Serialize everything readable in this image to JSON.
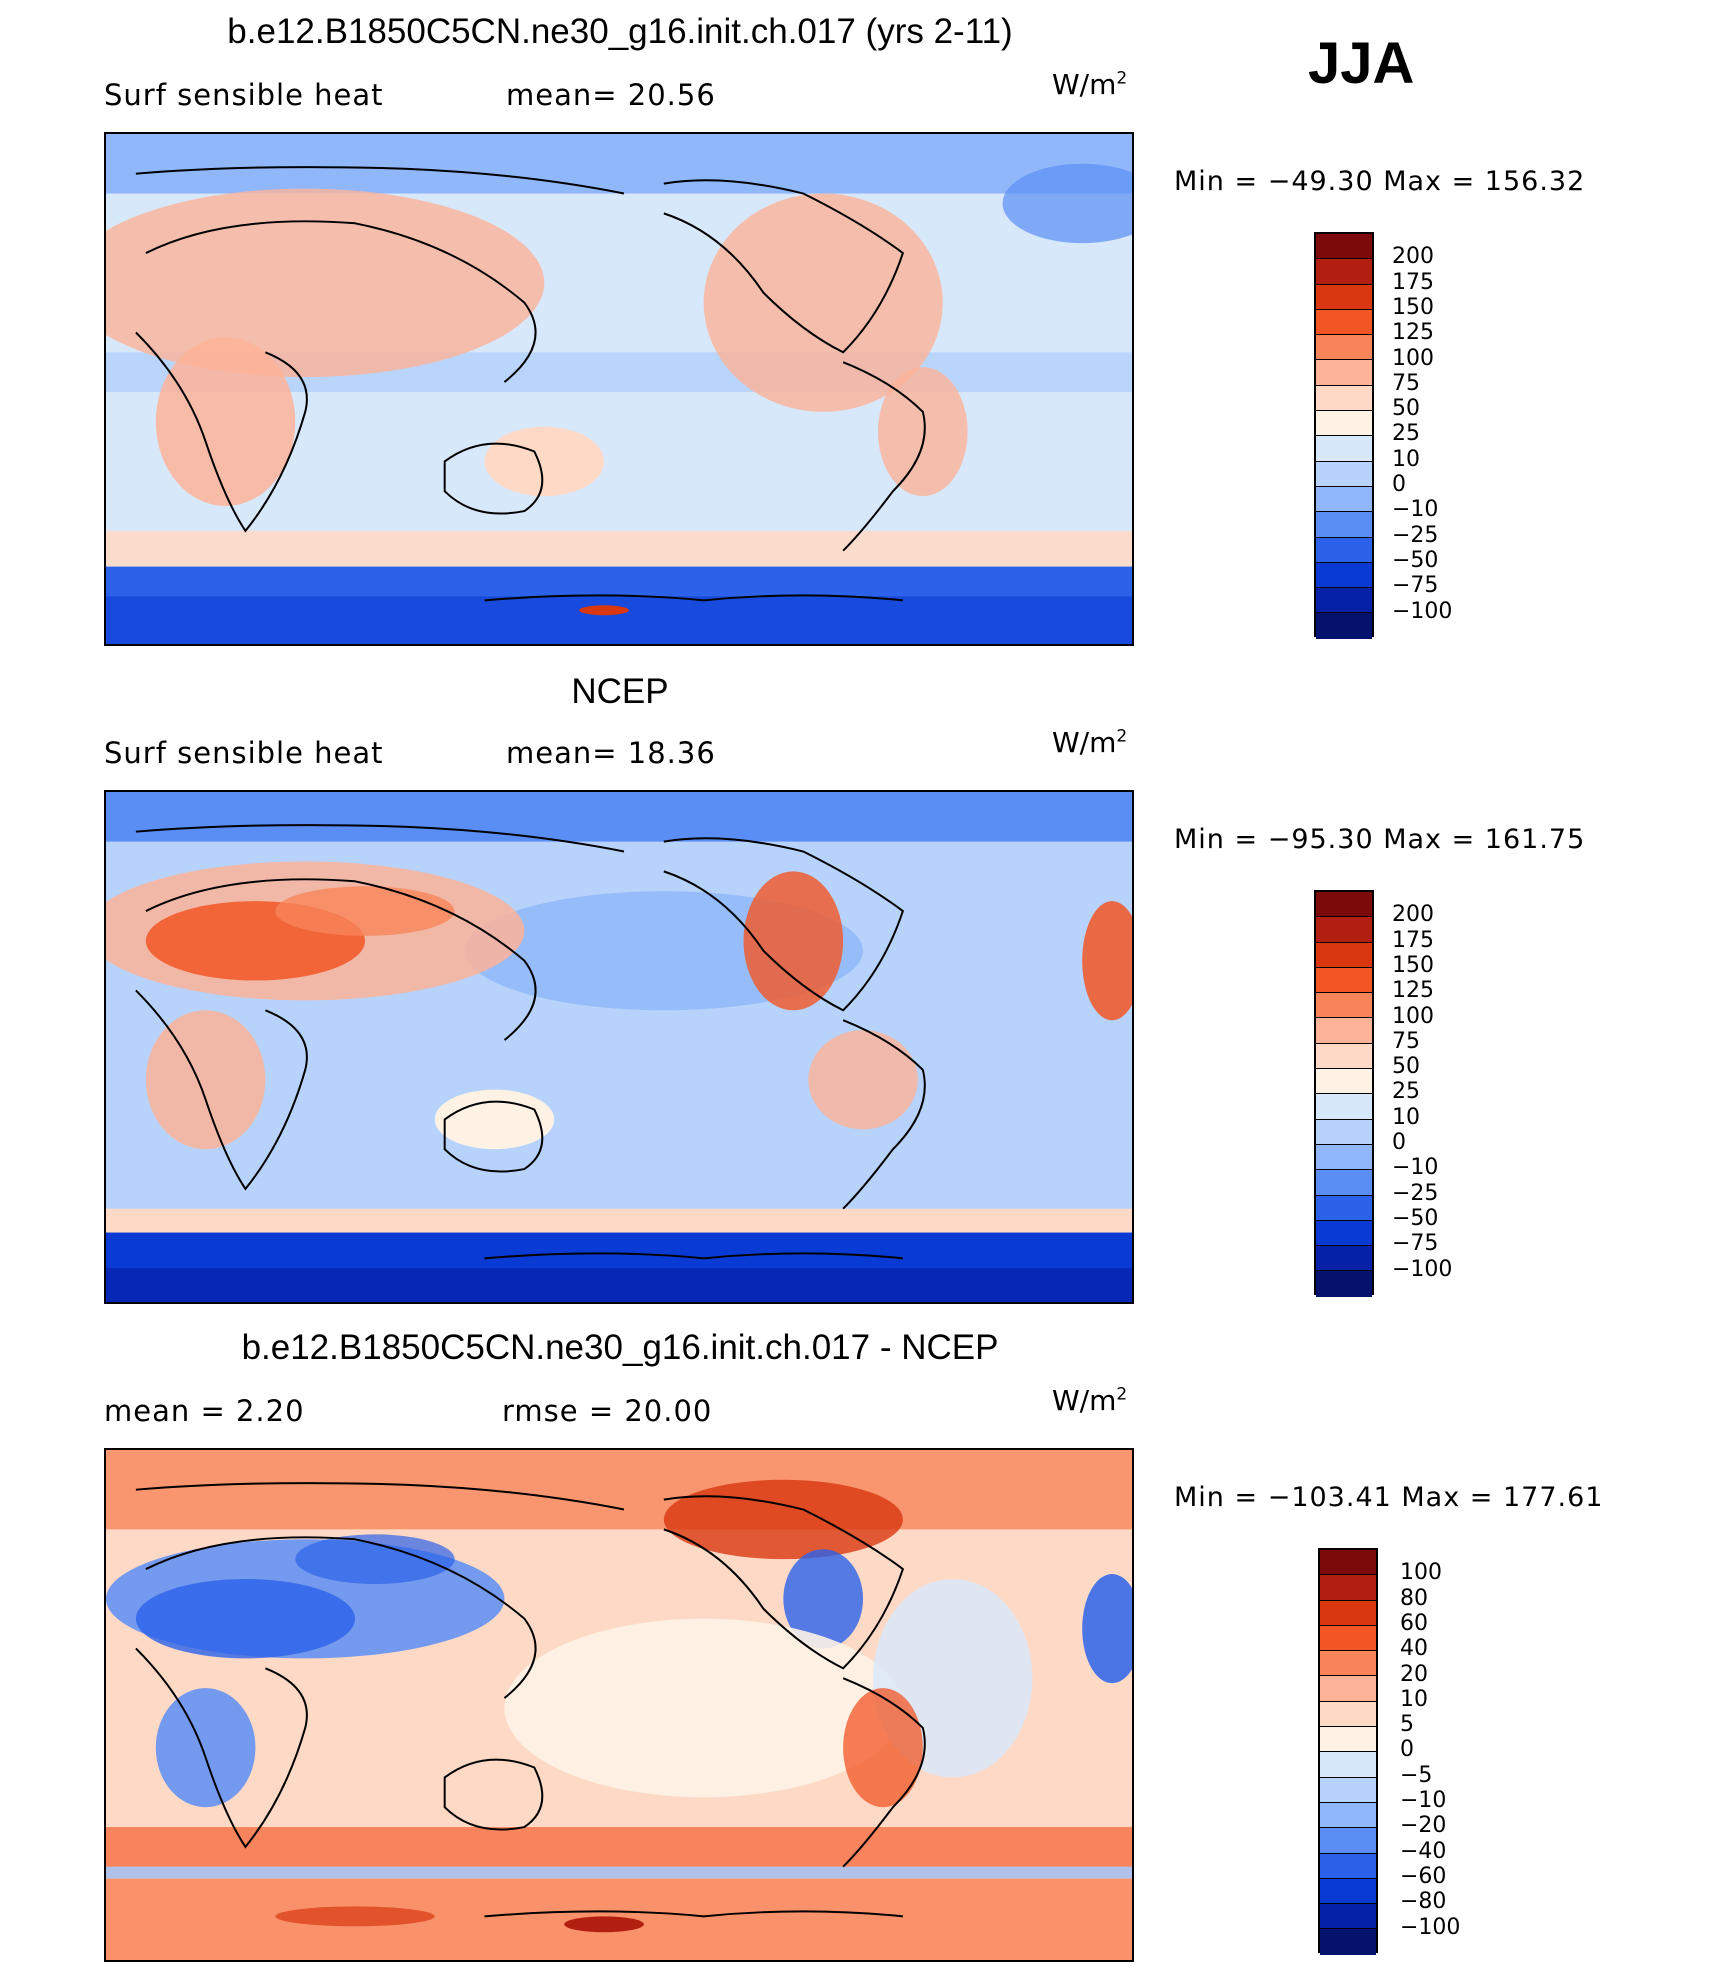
{
  "season": "JJA",
  "colors": {
    "ocean_blue": "#a5c8fb",
    "land_warm": "#f3a98a",
    "antarctic": "#1f4fd6",
    "coast": "#000000"
  },
  "panels": [
    {
      "title": "b.e12.B1850C5CN.ne30_g16.init.ch.017 (yrs 2-11)",
      "left_text": "Surf  sensible  heat",
      "right_text": "mean=   20.56",
      "units": "W/m",
      "units_sup": "2",
      "minmax": "Min  =  −49.30  Max  =  156.32",
      "colorbar": {
        "labels": [
          "200",
          "175",
          "150",
          "125",
          "100",
          "75",
          "50",
          "25",
          "10",
          "0",
          "−10",
          "−25",
          "−50",
          "−75",
          "−100"
        ],
        "colors": [
          "#7d0a0a",
          "#b21f10",
          "#d8370f",
          "#f25624",
          "#f8845a",
          "#fdb398",
          "#fed9c6",
          "#fef2e5",
          "#d8e8fb",
          "#b7d3fb",
          "#8fb7fa",
          "#5a8ef5",
          "#2c62ea",
          "#0a3ad4",
          "#0521a8",
          "#04126e"
        ]
      }
    },
    {
      "title": "NCEP",
      "left_text": "Surf  sensible  heat",
      "right_text": "mean=   18.36",
      "units": "W/m",
      "units_sup": "2",
      "minmax": "Min  =  −95.30  Max  =  161.75",
      "colorbar": {
        "labels": [
          "200",
          "175",
          "150",
          "125",
          "100",
          "75",
          "50",
          "25",
          "10",
          "0",
          "−10",
          "−25",
          "−50",
          "−75",
          "−100"
        ],
        "colors": [
          "#7d0a0a",
          "#b21f10",
          "#d8370f",
          "#f25624",
          "#f8845a",
          "#fdb398",
          "#fed9c6",
          "#fef2e5",
          "#d8e8fb",
          "#b7d3fb",
          "#8fb7fa",
          "#5a8ef5",
          "#2c62ea",
          "#0a3ad4",
          "#0521a8",
          "#04126e"
        ]
      }
    },
    {
      "title": "b.e12.B1850C5CN.ne30_g16.init.ch.017 - NCEP",
      "left_text": "mean =      2.20",
      "right_text": "rmse  =    20.00",
      "units": "W/m",
      "units_sup": "2",
      "minmax": "Min  =  −103.41  Max  =  177.61",
      "colorbar": {
        "labels": [
          "100",
          "80",
          "60",
          "40",
          "20",
          "10",
          "5",
          "0",
          "−5",
          "−10",
          "−20",
          "−40",
          "−60",
          "−80",
          "−100"
        ],
        "colors": [
          "#7d0a0a",
          "#b21f10",
          "#d8370f",
          "#f25624",
          "#f8845a",
          "#fdb398",
          "#fed9c6",
          "#fef2e5",
          "#d8e8fb",
          "#b7d3fb",
          "#8fb7fa",
          "#5a8ef5",
          "#2c62ea",
          "#0a3ad4",
          "#0521a8",
          "#04126e"
        ]
      }
    }
  ],
  "chart_data": [
    {
      "type": "heatmap",
      "title": "b.e12.B1850C5CN.ne30_g16.init.ch.017 (yrs 2-11)",
      "variable": "Surf sensible heat",
      "units": "W/m2",
      "mean": 20.56,
      "min": -49.3,
      "max": 156.32,
      "levels": [
        -100,
        -75,
        -50,
        -25,
        -10,
        0,
        10,
        25,
        50,
        75,
        100,
        125,
        150,
        175,
        200
      ]
    },
    {
      "type": "heatmap",
      "title": "NCEP",
      "variable": "Surf sensible heat",
      "units": "W/m2",
      "mean": 18.36,
      "min": -95.3,
      "max": 161.75,
      "levels": [
        -100,
        -75,
        -50,
        -25,
        -10,
        0,
        10,
        25,
        50,
        75,
        100,
        125,
        150,
        175,
        200
      ]
    },
    {
      "type": "heatmap",
      "title": "b.e12.B1850C5CN.ne30_g16.init.ch.017 - NCEP",
      "units": "W/m2",
      "mean": 2.2,
      "rmse": 20.0,
      "min": -103.41,
      "max": 177.61,
      "levels": [
        -100,
        -80,
        -60,
        -40,
        -20,
        -10,
        -5,
        0,
        5,
        10,
        20,
        40,
        60,
        80,
        100
      ]
    }
  ]
}
